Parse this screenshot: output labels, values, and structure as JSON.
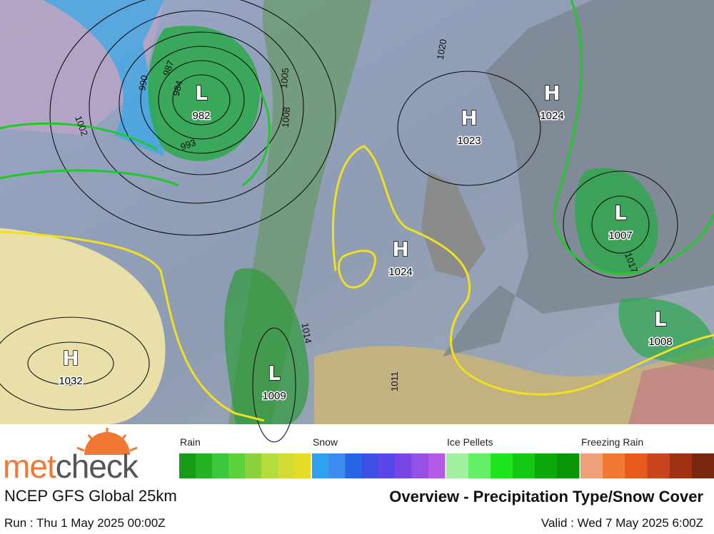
{
  "header": {
    "brand": {
      "prefix": "met",
      "suffix": "check"
    },
    "model": "NCEP GFS Global 25km",
    "run": "Run : Thu 1 May 2025 00:00Z",
    "title": "Overview - Precipitation Type/Snow Cover",
    "valid": "Valid : Wed 7 May 2025 6:00Z"
  },
  "legend": [
    {
      "label": "Rain",
      "colors": [
        "#1a9a1a",
        "#22b422",
        "#3cc83c",
        "#5ad23c",
        "#8ad23c",
        "#b4dc3c",
        "#d2dc32",
        "#e6dc28"
      ]
    },
    {
      "label": "Snow",
      "colors": [
        "#32a0f0",
        "#3c8cf0",
        "#2864e6",
        "#3c50e6",
        "#5a46e6",
        "#7846e6",
        "#9650e6",
        "#b45ae6"
      ]
    },
    {
      "label": "Ice Pellets",
      "colors": [
        "#a0f0a0",
        "#64f064",
        "#1ee61e",
        "#14c814",
        "#0aaa0a",
        "#089608"
      ]
    },
    {
      "label": "Freezing Rain",
      "colors": [
        "#f0a078",
        "#f07832",
        "#e65a1e",
        "#c8461e",
        "#a03214",
        "#782810"
      ]
    }
  ],
  "pressure_systems": [
    {
      "type": "L",
      "value": 982
    },
    {
      "type": "H",
      "value": 1023
    },
    {
      "type": "H",
      "value": 1024
    },
    {
      "type": "L",
      "value": 1007
    },
    {
      "type": "H",
      "value": 1024
    },
    {
      "type": "L",
      "value": 1008
    },
    {
      "type": "H",
      "value": 1032
    },
    {
      "type": "L",
      "value": 1009
    }
  ],
  "isobar_labels": [
    1020,
    1005,
    1008,
    1002,
    993,
    990,
    987,
    984,
    1014,
    1017,
    1011
  ]
}
